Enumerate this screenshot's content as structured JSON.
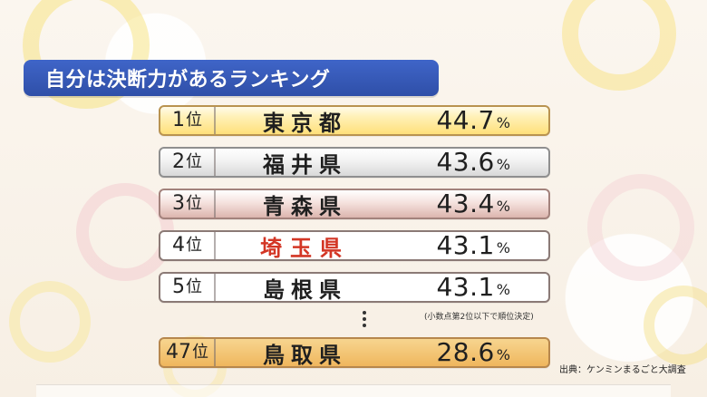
{
  "title": "自分は決断力があるランキング",
  "rows": [
    {
      "rank_num": "1",
      "rank_unit": "位",
      "prefecture": "東京都",
      "value": "44.7",
      "unit": "%"
    },
    {
      "rank_num": "2",
      "rank_unit": "位",
      "prefecture": "福井県",
      "value": "43.6",
      "unit": "%"
    },
    {
      "rank_num": "3",
      "rank_unit": "位",
      "prefecture": "青森県",
      "value": "43.4",
      "unit": "%"
    },
    {
      "rank_num": "4",
      "rank_unit": "位",
      "prefecture": "埼玉県",
      "value": "43.1",
      "unit": "%"
    },
    {
      "rank_num": "5",
      "rank_unit": "位",
      "prefecture": "島根県",
      "value": "43.1",
      "unit": "%"
    },
    {
      "rank_num": "47",
      "rank_unit": "位",
      "prefecture": "鳥取県",
      "value": "28.6",
      "unit": "%"
    }
  ],
  "note": "(小数点第2位以下で順位決定)",
  "source": "出典：ケンミンまるごと大調査"
}
